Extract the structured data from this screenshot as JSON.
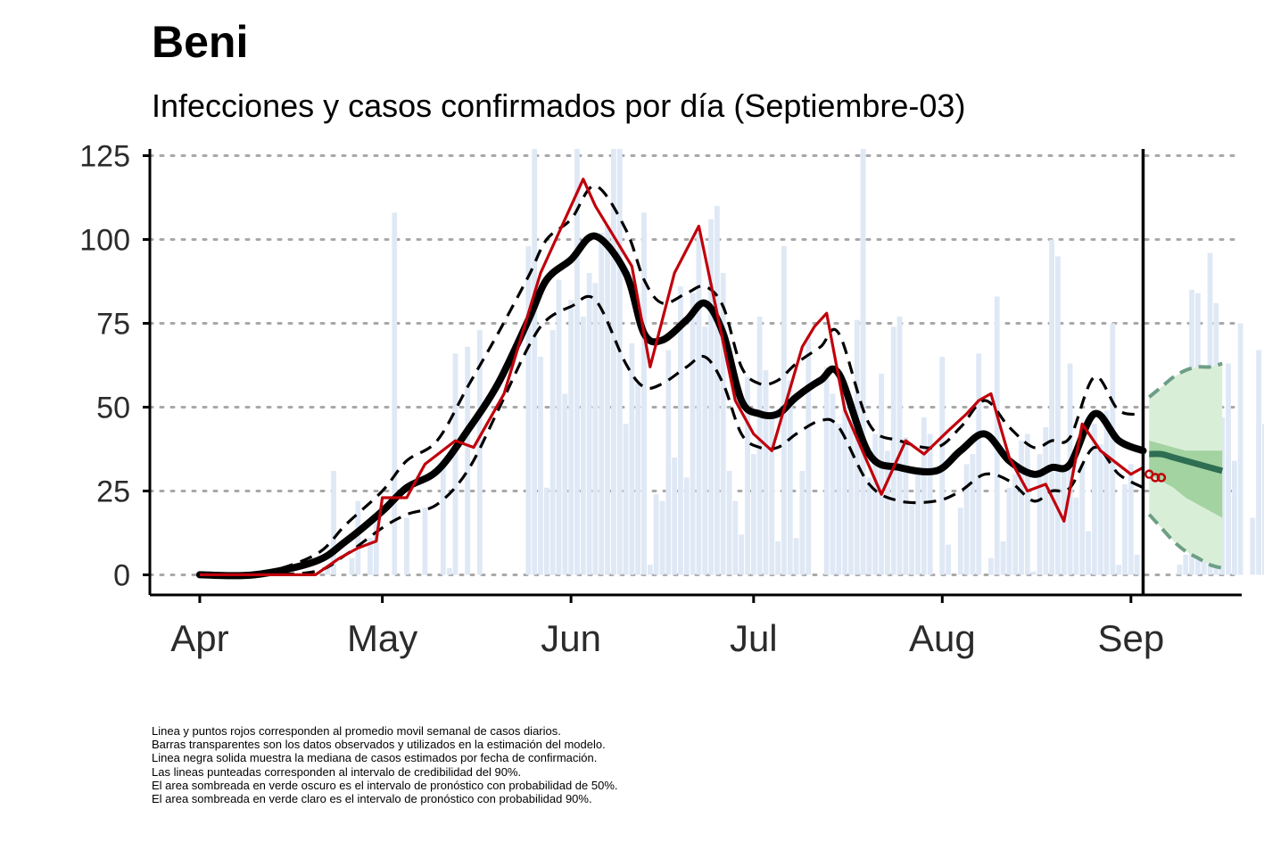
{
  "title": "Beni",
  "subtitle": "Infecciones y casos confirmados por día (Septiembre-03)",
  "notes": [
    "Linea y puntos rojos corresponden al promedio movil semanal de casos diarios.",
    "Barras transparentes son los datos observados y utilizados en la estimación del modelo.",
    "Linea negra solida muestra la mediana de casos estimados por fecha de confirmación.",
    "Las lineas punteadas corresponden al intervalo de credibilidad del 90%.",
    "El area sombreada en verde oscuro es el intervalo de pronóstico con probabilidad de 50%.",
    "El area sombreada en verde claro es el intervalo de pronóstico con probabilidad 90%."
  ],
  "colors": {
    "bars": "#dfe8f5",
    "median": "#000000",
    "moving_average": "#c0000b",
    "forecast_50": "#a3d3a0",
    "forecast_90": "#d9eed7",
    "forecast_line": "#2e6e52"
  },
  "chart_data": {
    "type": "bar",
    "x_axis": {
      "type": "date",
      "start": "2020-04-01",
      "end": "2020-09-18",
      "ticks": [
        "Apr",
        "May",
        "Jun",
        "Jul",
        "Aug",
        "Sep"
      ],
      "tick_dates": [
        "2020-04-01",
        "2020-05-01",
        "2020-06-01",
        "2020-07-01",
        "2020-08-01",
        "2020-09-01"
      ]
    },
    "y_axis": {
      "ticks": [
        0,
        25,
        50,
        75,
        100,
        125
      ],
      "ylim": [
        -6,
        127
      ]
    },
    "grid": "horizontal dotted",
    "vline_date": "2020-09-03",
    "observed_bars_date_range": [
      "2020-04-01",
      "2020-09-03"
    ],
    "observed_bars": [
      0,
      0,
      0,
      0,
      0,
      0,
      0,
      0,
      0,
      0,
      0,
      0,
      0,
      0,
      0,
      0,
      0,
      0,
      0,
      0,
      0,
      2,
      31,
      0,
      0,
      5,
      22,
      0,
      11,
      16,
      0,
      0,
      108,
      0,
      17,
      0,
      0,
      20,
      0,
      0,
      32,
      2,
      66,
      0,
      68,
      0,
      73,
      0,
      0,
      0,
      0,
      0,
      0,
      0,
      98,
      128,
      65,
      26,
      73,
      88,
      54,
      82,
      129,
      77,
      90,
      87,
      102,
      104,
      128,
      128,
      45,
      69,
      57,
      108,
      3,
      24,
      22,
      67,
      35,
      86,
      29,
      84,
      102,
      74,
      106,
      110,
      90,
      31,
      22,
      12,
      59,
      36,
      77,
      61,
      47,
      10,
      98,
      58,
      11,
      31,
      71,
      0,
      0,
      62,
      54,
      45,
      53,
      46,
      76,
      128,
      29,
      42,
      60,
      37,
      74,
      77,
      41,
      21,
      30,
      47,
      42,
      0,
      65,
      9,
      0,
      20,
      33,
      36,
      66,
      0,
      5,
      83,
      10,
      26,
      30,
      40,
      42,
      1,
      36,
      44,
      100,
      95,
      31,
      63,
      23,
      33,
      13,
      45,
      39,
      49,
      75,
      3,
      27,
      33,
      6,
      0,
      0,
      0,
      0,
      0,
      0,
      3,
      6,
      85,
      84,
      37,
      96,
      81,
      47,
      63,
      34,
      75,
      0,
      17,
      67,
      45,
      15,
      18
    ],
    "median_dates": [
      "2020-04-01",
      "2020-04-10",
      "2020-04-20",
      "2020-04-25",
      "2020-05-01",
      "2020-05-05",
      "2020-05-10",
      "2020-05-15",
      "2020-05-20",
      "2020-05-25",
      "2020-05-28",
      "2020-06-01",
      "2020-06-05",
      "2020-06-10",
      "2020-06-13",
      "2020-06-16",
      "2020-06-20",
      "2020-06-23",
      "2020-06-26",
      "2020-06-29",
      "2020-07-02",
      "2020-07-05",
      "2020-07-08",
      "2020-07-12",
      "2020-07-15",
      "2020-07-20",
      "2020-07-25",
      "2020-07-31",
      "2020-08-04",
      "2020-08-08",
      "2020-08-12",
      "2020-08-16",
      "2020-08-19",
      "2020-08-22",
      "2020-08-26",
      "2020-08-30",
      "2020-09-03"
    ],
    "median": [
      0,
      0,
      4,
      10,
      19,
      26,
      31,
      43,
      57,
      76,
      88,
      94,
      101,
      90,
      72,
      70,
      76,
      81,
      72,
      52,
      48,
      48,
      53,
      58,
      60,
      36,
      32,
      31,
      37,
      42,
      34,
      30,
      32,
      33,
      48,
      40,
      37
    ],
    "ci90_lower": [
      0,
      0,
      1,
      6,
      14,
      18,
      21,
      31,
      49,
      68,
      76,
      80,
      82,
      63,
      56,
      57,
      62,
      65,
      57,
      42,
      38,
      38,
      42,
      46,
      44,
      27,
      22,
      22,
      25,
      30,
      28,
      22,
      25,
      26,
      38,
      30,
      26
    ],
    "ci90_upper": [
      0,
      0,
      6,
      15,
      25,
      34,
      40,
      56,
      72,
      89,
      100,
      106,
      116,
      103,
      88,
      81,
      84,
      86,
      80,
      62,
      57,
      58,
      63,
      68,
      72,
      45,
      40,
      38,
      44,
      52,
      44,
      38,
      40,
      41,
      59,
      49,
      48
    ],
    "moving_average": [
      0,
      0,
      0,
      5,
      8,
      10,
      23,
      23,
      33,
      40,
      38,
      54,
      90,
      118,
      110,
      101,
      92,
      62,
      90,
      104,
      78,
      52,
      42,
      37,
      68,
      74,
      78,
      49,
      24,
      40,
      36,
      43,
      48,
      52,
      54,
      35,
      25,
      27,
      16,
      45,
      37,
      30,
      32
    ],
    "moving_average_dates": [
      "2020-04-01",
      "2020-04-10",
      "2020-04-20",
      "2020-04-24",
      "2020-04-27",
      "2020-04-30",
      "2020-05-01",
      "2020-05-05",
      "2020-05-08",
      "2020-05-13",
      "2020-05-16",
      "2020-05-21",
      "2020-05-27",
      "2020-06-03",
      "2020-06-05",
      "2020-06-08",
      "2020-06-11",
      "2020-06-14",
      "2020-06-18",
      "2020-06-22",
      "2020-06-25",
      "2020-06-28",
      "2020-07-01",
      "2020-07-04",
      "2020-07-09",
      "2020-07-11",
      "2020-07-13",
      "2020-07-16",
      "2020-07-22",
      "2020-07-26",
      "2020-07-29",
      "2020-08-02",
      "2020-08-05",
      "2020-08-07",
      "2020-08-09",
      "2020-08-12",
      "2020-08-15",
      "2020-08-18",
      "2020-08-21",
      "2020-08-24",
      "2020-08-27",
      "2020-09-01",
      "2020-09-03"
    ],
    "moving_average_points": [
      {
        "date": "2020-09-04",
        "value": 30
      },
      {
        "date": "2020-09-05",
        "value": 29
      },
      {
        "date": "2020-09-06",
        "value": 29
      }
    ],
    "forecast_dates": [
      "2020-09-04",
      "2020-09-06",
      "2020-09-08",
      "2020-09-10",
      "2020-09-12",
      "2020-09-14",
      "2020-09-16"
    ],
    "forecast_median": [
      36,
      36,
      35,
      34,
      33,
      32,
      31
    ],
    "forecast_50_lower": [
      30,
      28,
      26,
      23,
      21,
      19,
      17
    ],
    "forecast_50_upper": [
      40,
      39,
      38,
      37,
      37,
      37,
      37
    ],
    "forecast_90_lower": [
      18,
      14,
      10,
      7,
      5,
      3,
      2
    ],
    "forecast_90_upper": [
      53,
      56,
      59,
      61,
      62,
      62,
      63
    ]
  }
}
